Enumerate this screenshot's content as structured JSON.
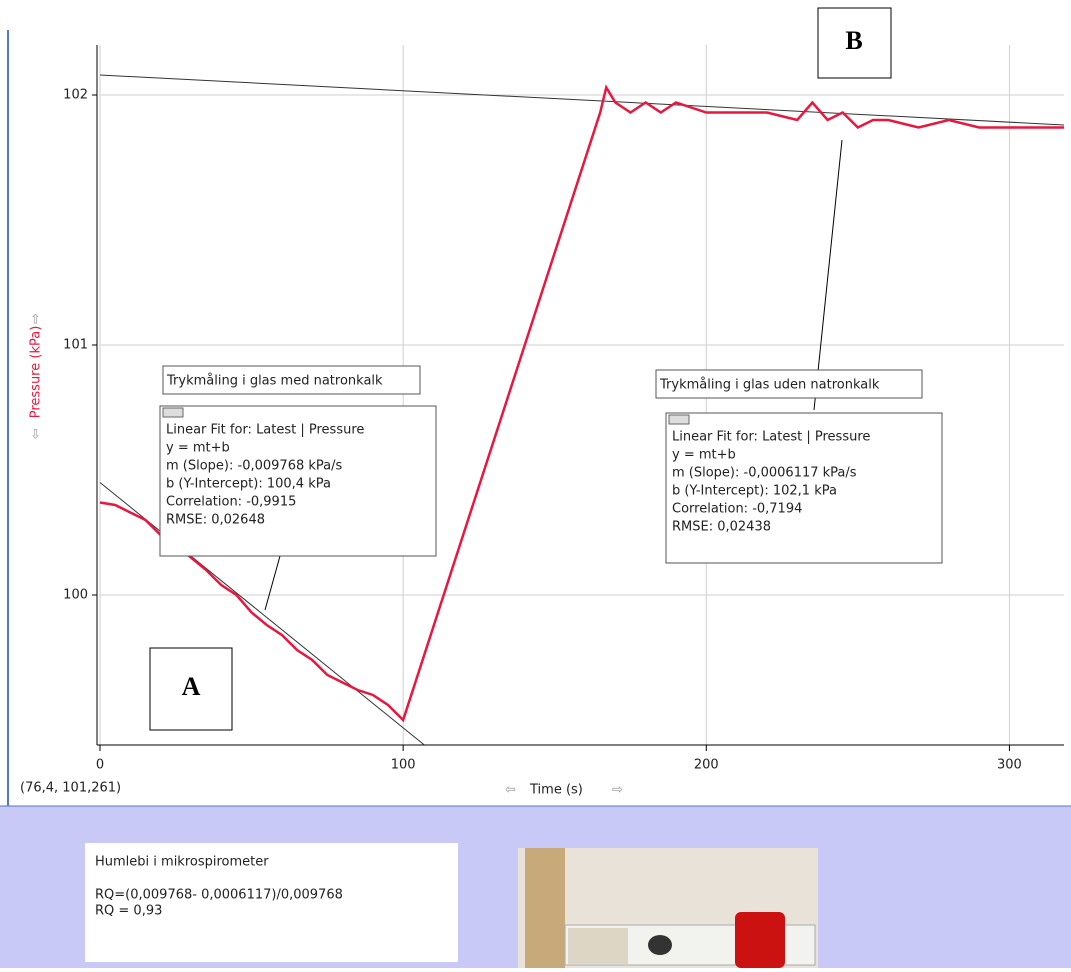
{
  "chart_data": {
    "type": "line",
    "xlabel": "Time (s)",
    "ylabel": "Pressure (kPa)",
    "xlim": [
      0,
      318
    ],
    "ylim": [
      99.4,
      102.2
    ],
    "xticks": [
      0,
      100,
      200,
      300
    ],
    "yticks": [
      100,
      101,
      102
    ],
    "grid": true,
    "series": [
      {
        "color": "#e8173f",
        "x": [
          0,
          5,
          10,
          15,
          20,
          25,
          30,
          35,
          40,
          45,
          50,
          55,
          60,
          65,
          70,
          75,
          80,
          85,
          90,
          95,
          100,
          165,
          167,
          170,
          175,
          180,
          185,
          190,
          200,
          210,
          220,
          230,
          235,
          240,
          245,
          250,
          255,
          260,
          270,
          280,
          290,
          300,
          310,
          318
        ],
        "values": [
          100.37,
          100.36,
          100.33,
          100.3,
          100.24,
          100.2,
          100.15,
          100.1,
          100.04,
          100.0,
          99.93,
          99.88,
          99.84,
          99.78,
          99.74,
          99.68,
          99.65,
          99.62,
          99.6,
          99.56,
          99.5,
          101.93,
          102.03,
          101.97,
          101.93,
          101.97,
          101.93,
          101.97,
          101.93,
          101.93,
          101.93,
          101.9,
          101.97,
          101.9,
          101.93,
          101.87,
          101.9,
          101.9,
          101.87,
          101.9,
          101.87,
          101.87,
          101.87,
          101.87
        ]
      }
    ],
    "fits": [
      {
        "color": "#333333",
        "x": [
          0,
          107
        ],
        "values": [
          100.45,
          99.4
        ]
      },
      {
        "color": "#333333",
        "x": [
          0,
          318
        ],
        "values": [
          102.08,
          101.88
        ]
      }
    ],
    "fit_boxes": [
      {
        "title": "Trykmåling i glas med natronkalk",
        "lines": [
          "Linear Fit for:  Latest | Pressure",
          "y = mt+b",
          "m (Slope): -0,009768 kPa/s",
          "b (Y-Intercept): 100,4 kPa",
          "Correlation: -0,9915",
          "RMSE: 0,02648"
        ]
      },
      {
        "title": "Trykmåling i glas uden natronkalk",
        "lines": [
          "Linear Fit for:  Latest | Pressure",
          "y = mt+b",
          "m (Slope): -0,0006117 kPa/s",
          "b (Y-Intercept): 102,1 kPa",
          "Correlation: -0,7194",
          "RMSE: 0,02438"
        ]
      }
    ],
    "labels": [
      "A",
      "B"
    ],
    "cursor": "(76,4, 101,261)"
  },
  "note": {
    "title": "Humlebi i mikrospirometer",
    "lines": [
      "RQ=(0,009768- 0,0006117)/0,009768",
      "RQ = 0,93"
    ]
  }
}
